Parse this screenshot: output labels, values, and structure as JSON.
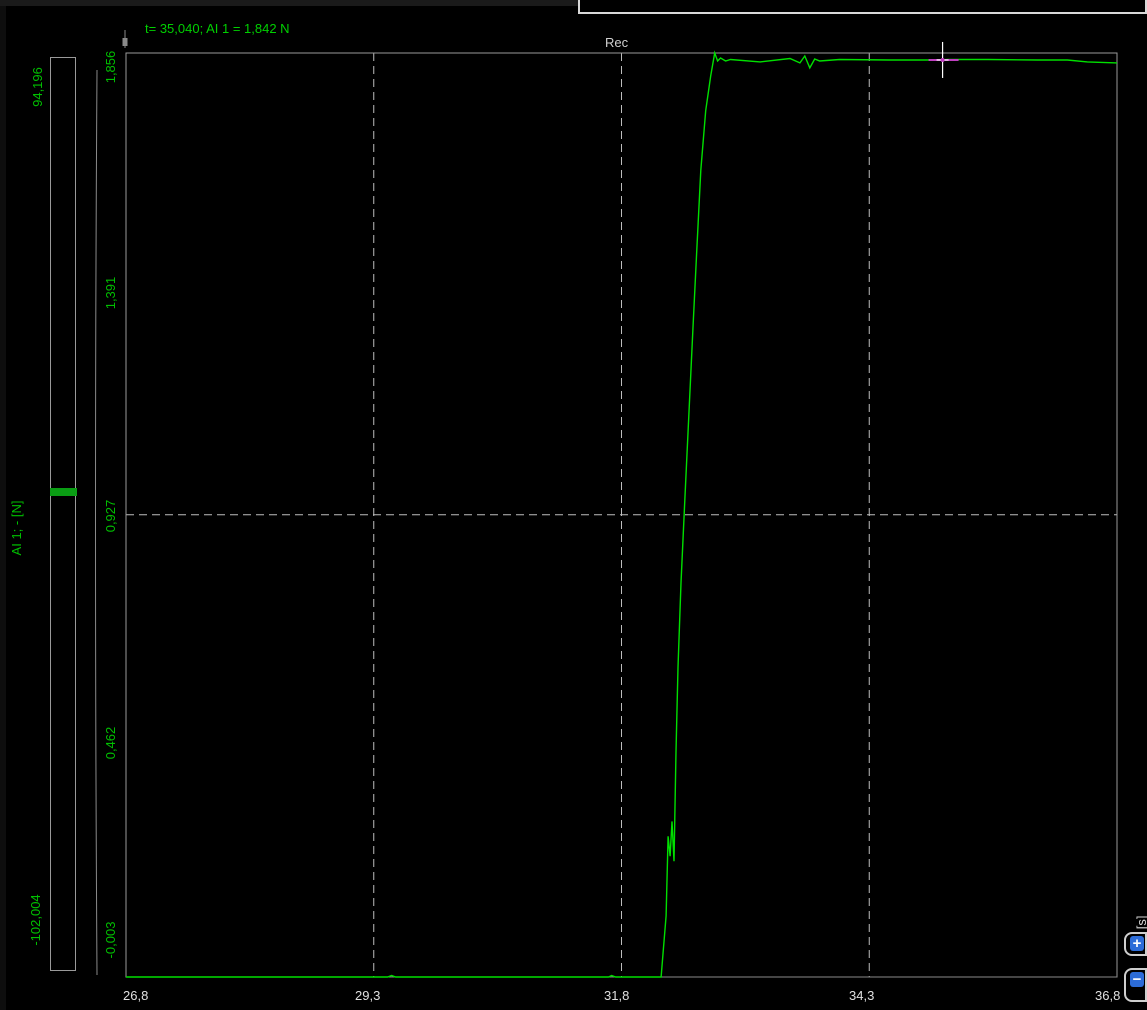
{
  "cursor_readout": "t= 35,040; AI 1 = 1,842 N",
  "channel_status": "Rec",
  "range_bar": {
    "max_label": "94,196",
    "min_label": "-102,004",
    "level_fraction": 0.52
  },
  "colors": {
    "signal": "#00e000",
    "grid": "#bdbdbd",
    "frame": "#9a9a9a",
    "cursor_marker": "#c040c0",
    "zoom_button": "#2c6cd8"
  },
  "icons": {
    "zoom_in": "plus-icon",
    "zoom_out": "minus-icon"
  },
  "zoom_in_symbol": "+",
  "zoom_out_symbol": "−",
  "chart_data": {
    "type": "line",
    "ylabel": "AI 1; - [N]",
    "xlabel": "t [s]",
    "x_ticks": [
      "26,8",
      "29,3",
      "31,8",
      "34,3",
      "36,8"
    ],
    "y_ticks": [
      "-0,003",
      "0,462",
      "0,927",
      "1,391",
      "1,856"
    ],
    "xlim": [
      26.8,
      36.8
    ],
    "ylim": [
      -0.003,
      1.856
    ],
    "grid": true,
    "cursor": {
      "t": 35.04,
      "value": 1.842
    },
    "series": [
      {
        "x": [
          26.8,
          27.5,
          28.5,
          29.44,
          29.48,
          29.52,
          30.5,
          31.67,
          31.7,
          31.74,
          32.2,
          32.25,
          32.27,
          32.29,
          32.31,
          32.33,
          32.35,
          32.37,
          32.4,
          32.44,
          32.48,
          32.52,
          32.56,
          32.6,
          32.65,
          32.7,
          32.74,
          32.77,
          32.8,
          32.85,
          32.9,
          33.2,
          33.5,
          33.6,
          33.65,
          33.7,
          33.75,
          33.8,
          34.0,
          34.5,
          34.9,
          35.0,
          35.1,
          35.5,
          36.0,
          36.3,
          36.5,
          36.8
        ],
        "y": [
          -0.003,
          -0.003,
          -0.003,
          -0.003,
          0.0,
          -0.003,
          -0.003,
          -0.003,
          0.0,
          -0.003,
          -0.003,
          0.12,
          0.28,
          0.24,
          0.31,
          0.23,
          0.45,
          0.62,
          0.79,
          0.96,
          1.13,
          1.3,
          1.46,
          1.62,
          1.74,
          1.81,
          1.856,
          1.84,
          1.846,
          1.84,
          1.843,
          1.838,
          1.845,
          1.836,
          1.85,
          1.826,
          1.844,
          1.84,
          1.843,
          1.842,
          1.842,
          1.842,
          1.843,
          1.843,
          1.842,
          1.842,
          1.838,
          1.836
        ]
      }
    ]
  }
}
